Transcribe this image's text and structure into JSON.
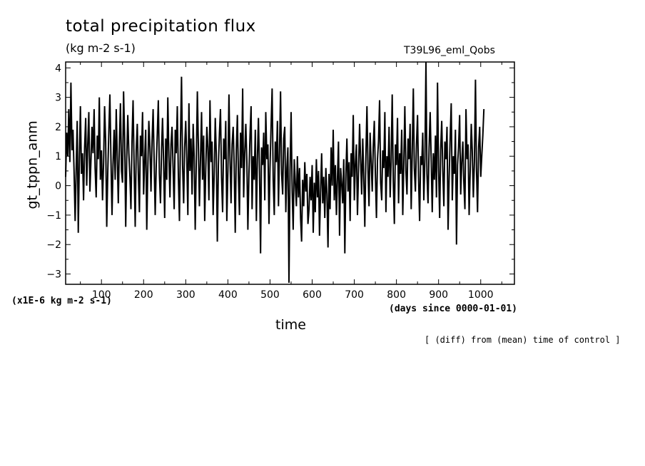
{
  "chart_data": {
    "type": "line",
    "title": "total precipitation flux",
    "subtitle": "(kg m-2 s-1)",
    "run_name": "T39L96_eml_Qobs",
    "ylabel": "gt_tppn_anm",
    "xlabel": "time",
    "y_scale_note": "(x1E-6 kg m-2 s-1)",
    "x_units": "(days since 0000-01-01)",
    "footnote": "[ (diff) from (mean) time of control ]",
    "xlim": [
      15,
      1080
    ],
    "ylim": [
      -3.35,
      4.2
    ],
    "x_ticks": [
      100,
      200,
      300,
      400,
      500,
      600,
      700,
      800,
      900,
      1000
    ],
    "y_ticks": [
      -3,
      -2,
      -1,
      0,
      1,
      2,
      3,
      4
    ],
    "series_color": "#000000",
    "series": [
      {
        "x_start": 15,
        "x_step": 2.5,
        "values": [
          0.3,
          1.8,
          1.0,
          2.6,
          0.8,
          3.5,
          1.2,
          1.9,
          0.5,
          -1.2,
          0.6,
          2.2,
          -1.6,
          0.9,
          2.7,
          0.4,
          1.1,
          -0.5,
          1.3,
          2.3,
          0.0,
          1.4,
          2.5,
          -0.2,
          0.8,
          2.0,
          1.1,
          2.6,
          0.6,
          -0.4,
          1.7,
          0.9,
          3.0,
          0.2,
          1.2,
          -0.5,
          0.8,
          2.7,
          1.5,
          -1.4,
          0.5,
          1.8,
          3.1,
          0.9,
          -1.0,
          0.7,
          1.9,
          0.2,
          2.6,
          1.0,
          -0.6,
          1.4,
          2.8,
          0.5,
          0.1,
          3.2,
          1.6,
          -1.4,
          0.9,
          2.4,
          1.1,
          0.3,
          -0.8,
          1.5,
          2.9,
          0.6,
          -1.4,
          1.2,
          2.1,
          0.4,
          -0.9,
          1.7,
          1.0,
          2.5,
          -0.3,
          0.8,
          1.9,
          -1.5,
          0.6,
          2.2,
          1.3,
          -0.2,
          1.5,
          2.6,
          0.9,
          -1.0,
          0.7,
          1.8,
          2.9,
          0.4,
          -0.6,
          1.2,
          2.3,
          0.8,
          -1.1,
          1.6,
          0.2,
          3.0,
          1.0,
          -0.4,
          1.4,
          2.0,
          0.6,
          -0.8,
          1.9,
          1.1,
          2.7,
          0.3,
          -1.2,
          1.5,
          3.7,
          0.7,
          -0.6,
          1.3,
          2.2,
          0.9,
          -1.0,
          2.8,
          0.5,
          1.6,
          -0.3,
          2.1,
          1.0,
          -1.5,
          0.8,
          3.2,
          1.4,
          -0.7,
          0.9,
          2.5,
          0.2,
          1.7,
          -1.2,
          0.6,
          2.0,
          1.3,
          -0.5,
          2.9,
          0.8,
          1.5,
          -1.0,
          0.4,
          2.3,
          1.1,
          -1.9,
          0.7,
          1.8,
          2.6,
          0.3,
          -0.9,
          1.6,
          0.9,
          2.2,
          -1.2,
          0.5,
          3.1,
          1.0,
          -0.6,
          1.4,
          2.0,
          0.7,
          -1.6,
          1.2,
          2.4,
          0.3,
          -1.0,
          1.8,
          0.6,
          3.3,
          -0.4,
          1.1,
          2.1,
          0.8,
          -1.5,
          0.4,
          1.7,
          2.7,
          -0.8,
          1.0,
          0.2,
          1.9,
          -1.2,
          0.9,
          2.3,
          0.5,
          -2.3,
          1.3,
          0.7,
          1.8,
          -0.5,
          2.5,
          0.9,
          1.4,
          -1.3,
          0.6,
          2.0,
          3.3,
          0.2,
          -1.0,
          1.5,
          0.8,
          2.2,
          -0.7,
          1.1,
          3.2,
          0.4,
          -0.3,
          1.6,
          2.0,
          -0.9,
          0.6,
          1.3,
          -3.3,
          0.5,
          2.5,
          -0.2,
          -1.5,
          0.9,
          0.1,
          -0.7,
          1.0,
          -0.4,
          0.6,
          -1.1,
          -1.9,
          0.2,
          -0.7,
          0.8,
          -0.2,
          0.4,
          -1.3,
          -0.8,
          0.3,
          -0.5,
          0.7,
          -1.6,
          0.1,
          -0.9,
          0.9,
          -0.4,
          0.5,
          -1.7,
          -0.2,
          1.1,
          -0.6,
          0.3,
          -1.1,
          0.6,
          -0.3,
          -2.1,
          0.4,
          -0.8,
          1.3,
          0.0,
          1.9,
          -0.5,
          0.7,
          -1.0,
          0.2,
          1.5,
          -1.7,
          0.6,
          0.1,
          -0.6,
          0.9,
          -2.3,
          0.4,
          1.6,
          -0.2,
          0.8,
          -1.2,
          1.1,
          0.3,
          2.4,
          -0.5,
          0.7,
          1.4,
          -1.0,
          0.5,
          2.1,
          0.9,
          -0.3,
          1.6,
          0.2,
          -1.4,
          1.0,
          2.7,
          0.5,
          -0.7,
          1.8,
          0.8,
          -0.2,
          1.3,
          2.2,
          0.4,
          -1.1,
          0.9,
          1.5,
          2.9,
          0.1,
          -0.5,
          1.2,
          0.6,
          2.5,
          -0.9,
          1.0,
          0.3,
          2.0,
          -0.4,
          0.8,
          3.1,
          0.2,
          -1.3,
          1.4,
          0.7,
          2.3,
          -0.6,
          1.1,
          0.4,
          1.9,
          -1.0,
          0.8,
          2.7,
          0.5,
          -0.3,
          1.6,
          0.9,
          2.1,
          -0.8,
          1.2,
          3.3,
          0.6,
          -0.2,
          1.4,
          2.4,
          0.3,
          -1.2,
          1.0,
          0.7,
          1.8,
          -0.5,
          0.9,
          4.2,
          0.4,
          -0.6,
          1.3,
          2.5,
          0.8,
          -0.9,
          1.1,
          0.2,
          1.7,
          -0.4,
          3.5,
          0.6,
          -1.1,
          1.2,
          2.2,
          0.5,
          -0.7,
          1.5,
          0.9,
          2.0,
          -1.5,
          0.3,
          1.6,
          2.8,
          -0.5,
          1.0,
          0.4,
          1.9,
          -2.0,
          0.7,
          1.3,
          2.4,
          -0.3,
          0.8,
          1.5,
          0.1,
          -0.8,
          2.6,
          0.9,
          1.4,
          -1.0,
          0.5,
          2.1,
          1.2,
          -0.4,
          0.8,
          3.6,
          0.6,
          -0.9,
          1.3,
          2.0,
          0.3,
          1.0,
          1.7,
          2.6
        ]
      }
    ]
  }
}
